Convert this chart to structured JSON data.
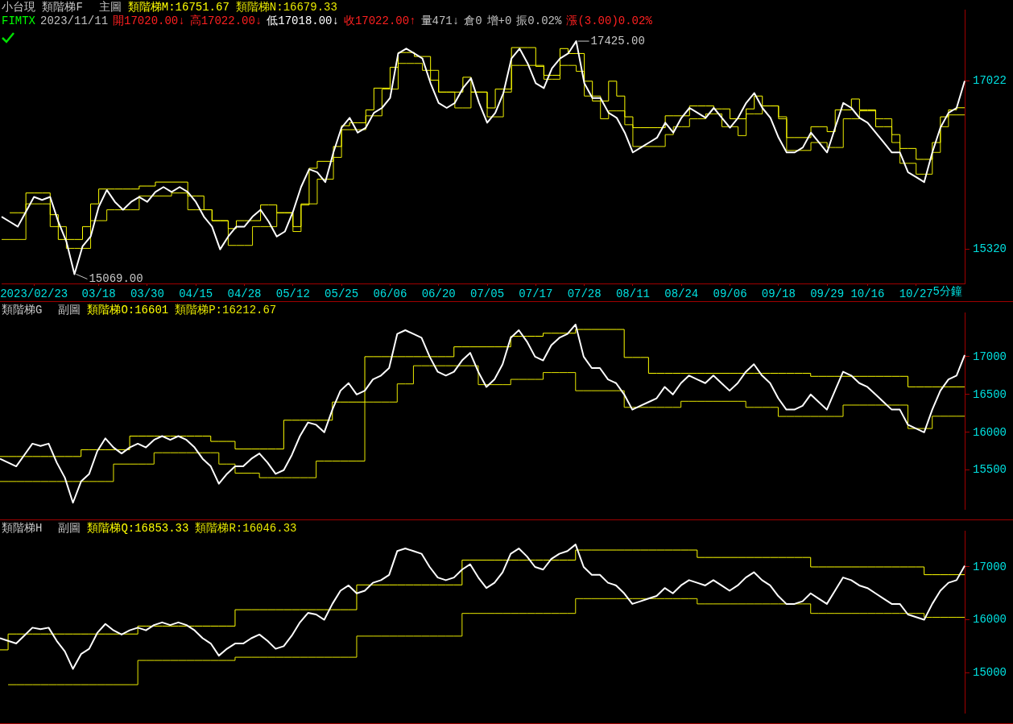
{
  "chart_data": [
    {
      "type": "line",
      "title": "小台現 類階梯F",
      "subtitle": "主圖",
      "legend": "top left",
      "marker": "none",
      "ylim": [
        14975,
        17740
      ],
      "categories": [
        null,
        null,
        null,
        null,
        "2023/02/23",
        null,
        null,
        null,
        null,
        null,
        null,
        null,
        "03/18",
        null,
        null,
        null,
        null,
        null,
        "03/30",
        null,
        null,
        null,
        null,
        null,
        "04/15",
        null,
        null,
        null,
        null,
        null,
        "04/28",
        null,
        null,
        null,
        null,
        null,
        "05/12",
        null,
        null,
        null,
        null,
        null,
        "05/25",
        null,
        null,
        null,
        null,
        null,
        "06/06",
        null,
        null,
        null,
        null,
        null,
        "06/20",
        null,
        null,
        null,
        null,
        null,
        "07/05",
        null,
        null,
        null,
        null,
        null,
        "07/17",
        null,
        null,
        null,
        null,
        null,
        "07/28",
        null,
        null,
        null,
        null,
        null,
        "08/11",
        null,
        null,
        null,
        null,
        null,
        "08/24",
        null,
        null,
        null,
        null,
        null,
        "09/06",
        null,
        null,
        null,
        null,
        null,
        "09/18",
        null,
        null,
        null,
        null,
        null,
        "09/29",
        null,
        null,
        null,
        null,
        "10/16",
        null,
        null,
        null,
        null,
        null,
        "10/27",
        null,
        null,
        null,
        null,
        null,
        null
      ],
      "yticks": [
        15320,
        17022
      ],
      "annotations": [
        "FIMTX",
        "2023/11/11",
        "開17020.00↓",
        "高17022.00↓",
        "低17018.00↓",
        "收17022.00↑",
        "量471↓",
        "倉0",
        "增+0",
        "振0.02%",
        "漲(3.00)0.02%",
        "5分鐘"
      ],
      "series": [
        {
          "color": "#ffffff",
          "values": [
            15650,
            15600,
            15550,
            15700,
            15850,
            15820,
            15850,
            15600,
            15400,
            15069,
            15350,
            15450,
            15750,
            15920,
            15800,
            15720,
            15800,
            15850,
            15800,
            15900,
            15950,
            15900,
            15950,
            15900,
            15800,
            15650,
            15550,
            15320,
            15450,
            15550,
            15550,
            15650,
            15720,
            15600,
            15450,
            15500,
            15700,
            15950,
            16130,
            16100,
            16000,
            16300,
            16550,
            16650,
            16500,
            16550,
            16700,
            16750,
            16850,
            17300,
            17350,
            17300,
            17250,
            17000,
            16800,
            16750,
            16800,
            16950,
            17050,
            16800,
            16600,
            16700,
            16900,
            17250,
            17350,
            17200,
            17000,
            16950,
            17150,
            17250,
            17300,
            17425,
            17000,
            16850,
            16850,
            16700,
            16650,
            16500,
            16300,
            16350,
            16400,
            16450,
            16600,
            16500,
            16650,
            16750,
            16700,
            16650,
            16750,
            16650,
            16550,
            16650,
            16800,
            16900,
            16750,
            16650,
            16450,
            16300,
            16300,
            16350,
            16500,
            16400,
            16300,
            16550,
            16800,
            16750,
            16650,
            16600,
            16500,
            16400,
            16300,
            16300,
            16100,
            16050,
            16000,
            16300,
            16550,
            16700,
            16750,
            17022
          ],
          "value_labels": [
            null,
            null,
            null,
            null,
            null,
            null,
            null,
            null,
            null,
            "15069.00",
            null,
            null,
            null,
            null,
            null,
            null,
            null,
            null,
            null,
            null,
            null,
            null,
            null,
            null,
            null,
            null,
            null,
            null,
            null,
            null,
            null,
            null,
            null,
            null,
            null,
            null,
            null,
            null,
            null,
            null,
            null,
            null,
            null,
            null,
            null,
            null,
            null,
            null,
            null,
            null,
            null,
            null,
            null,
            null,
            null,
            null,
            null,
            null,
            null,
            null,
            null,
            null,
            null,
            null,
            null,
            null,
            null,
            null,
            null,
            null,
            null,
            "17425.00",
            null,
            null,
            null,
            null,
            null,
            null,
            null,
            null,
            null,
            null,
            null,
            null,
            null,
            null,
            null,
            null,
            null,
            null,
            null,
            null,
            null,
            null,
            null,
            null,
            null,
            null,
            null,
            null,
            null,
            null,
            null,
            null,
            null,
            null,
            null,
            null,
            null,
            null,
            null,
            null,
            null,
            null,
            null,
            null,
            null,
            null,
            null,
            null
          ]
        },
        {
          "type": "step",
          "name": "類階梯M:16751.67",
          "color": "#ffff00",
          "values": [
            null,
            15690,
            15690,
            15890,
            15890,
            15890,
            15670,
            15420,
            15420,
            15420,
            15550,
            15780,
            15930,
            15930,
            15930,
            15930,
            15930,
            15960,
            15960,
            16000,
            16000,
            16000,
            16000,
            15860,
            15860,
            15720,
            15610,
            15610,
            15530,
            15610,
            15610,
            15610,
            15770,
            15770,
            15690,
            15690,
            15550,
            15770,
            16140,
            16210,
            16210,
            16360,
            16570,
            16600,
            16600,
            16730,
            16950,
            16950,
            17160,
            17310,
            17310,
            17270,
            17270,
            17030,
            16910,
            16910,
            16910,
            17060,
            16910,
            16910,
            16750,
            16940,
            16940,
            17360,
            17360,
            17360,
            17170,
            17080,
            17080,
            17350,
            17300,
            17300,
            17020,
            16820,
            16820,
            17020,
            16870,
            16660,
            16550,
            16550,
            16550,
            16550,
            16670,
            16670,
            16670,
            16770,
            16770,
            16770,
            16740,
            16740,
            16640,
            16640,
            16740,
            16870,
            16770,
            16770,
            16660,
            16450,
            16450,
            16450,
            16560,
            16560,
            16510,
            16730,
            16730,
            16840,
            16730,
            16730,
            16560,
            16560,
            16480,
            16340,
            16340,
            16230,
            16230,
            16400,
            16660,
            16730,
            16751.67,
            16751.67
          ]
        },
        {
          "type": "step",
          "name": "類階梯N:16679.33",
          "color": "#e8e800",
          "values": [
            15420,
            15420,
            15420,
            15780,
            15780,
            15780,
            15550,
            15550,
            15330,
            15330,
            15330,
            15610,
            15610,
            15720,
            15720,
            15720,
            15720,
            15860,
            15860,
            15860,
            15860,
            15890,
            15890,
            15720,
            15720,
            15720,
            15610,
            15610,
            15360,
            15360,
            15360,
            15550,
            15550,
            15550,
            15690,
            15690,
            15500,
            15780,
            15780,
            16030,
            16030,
            16250,
            16530,
            16530,
            16530,
            16670,
            16670,
            16940,
            16940,
            17200,
            17200,
            17200,
            17130,
            17130,
            16910,
            16910,
            16750,
            16750,
            16910,
            16910,
            16660,
            16660,
            16910,
            17180,
            17180,
            17180,
            17180,
            17040,
            17040,
            17180,
            17180,
            17120,
            16870,
            16870,
            16640,
            16720,
            16720,
            16580,
            16360,
            16360,
            16360,
            16360,
            16480,
            16560,
            16560,
            16640,
            16640,
            16690,
            16690,
            16560,
            16560,
            16470,
            16690,
            16690,
            16770,
            16770,
            16640,
            16320,
            16320,
            16320,
            16400,
            16400,
            16350,
            16350,
            16640,
            16640,
            16720,
            16720,
            16640,
            16640,
            16400,
            16190,
            16190,
            16080,
            16080,
            16300,
            16560,
            16679.33,
            16679.33,
            16679.33
          ]
        }
      ]
    },
    {
      "type": "line",
      "title": "類階梯G",
      "subtitle": "副圖",
      "legend": "top left",
      "marker": "none",
      "tick_labels": "y",
      "ylim": [
        14980,
        17580
      ],
      "yticks": [
        15500,
        16000,
        16500,
        17000
      ],
      "categories": [
        null,
        null,
        null,
        null,
        null,
        null,
        null,
        null,
        null,
        null,
        null,
        null,
        null,
        null,
        null,
        null,
        null,
        null,
        null,
        null,
        null,
        null,
        null,
        null,
        null,
        null,
        null,
        null,
        null,
        null,
        null,
        null,
        null,
        null,
        null,
        null,
        null,
        null,
        null,
        null,
        null,
        null,
        null,
        null,
        null,
        null,
        null,
        null,
        null,
        null,
        null,
        null,
        null,
        null,
        null,
        null,
        null,
        null,
        null,
        null,
        null,
        null,
        null,
        null,
        null,
        null,
        null,
        null,
        null,
        null,
        null,
        null,
        null,
        null,
        null,
        null,
        null,
        null,
        null,
        null,
        null,
        null,
        null,
        null,
        null,
        null,
        null,
        null,
        null,
        null,
        null,
        null,
        null,
        null,
        null,
        null,
        null,
        null,
        null,
        null,
        null,
        null,
        null,
        null,
        null,
        null,
        null,
        null,
        null,
        null,
        null,
        null,
        null,
        null,
        null,
        null,
        null,
        null,
        null,
        null
      ],
      "series": [
        {
          "color": "#ffffff",
          "values": [
            15650,
            15600,
            15550,
            15700,
            15850,
            15820,
            15850,
            15600,
            15400,
            15069,
            15350,
            15450,
            15750,
            15920,
            15800,
            15720,
            15800,
            15850,
            15800,
            15900,
            15950,
            15900,
            15950,
            15900,
            15800,
            15650,
            15550,
            15320,
            15450,
            15550,
            15550,
            15650,
            15720,
            15600,
            15450,
            15500,
            15700,
            15950,
            16130,
            16100,
            16000,
            16300,
            16550,
            16650,
            16500,
            16550,
            16700,
            16750,
            16850,
            17300,
            17350,
            17300,
            17250,
            17000,
            16800,
            16750,
            16800,
            16950,
            17050,
            16800,
            16600,
            16700,
            16900,
            17250,
            17350,
            17200,
            17000,
            16950,
            17150,
            17250,
            17300,
            17425,
            17000,
            16850,
            16850,
            16700,
            16650,
            16500,
            16300,
            16350,
            16400,
            16450,
            16600,
            16500,
            16650,
            16750,
            16700,
            16650,
            16750,
            16650,
            16550,
            16650,
            16800,
            16900,
            16750,
            16650,
            16450,
            16300,
            16300,
            16350,
            16500,
            16400,
            16300,
            16550,
            16800,
            16750,
            16650,
            16600,
            16500,
            16400,
            16300,
            16300,
            16100,
            16050,
            16000,
            16300,
            16550,
            16700,
            16750,
            17022
          ]
        },
        {
          "type": "step",
          "name": "類階梯O:16601",
          "color": "#ffff00",
          "values": [
            15680,
            15680,
            15680,
            15680,
            15680,
            15680,
            15680,
            15680,
            15680,
            15680,
            15770,
            15770,
            15770,
            15770,
            15770,
            15770,
            15950,
            15950,
            15950,
            15950,
            15950,
            15950,
            15950,
            15950,
            15950,
            15950,
            15880,
            15880,
            15880,
            15780,
            15780,
            15780,
            15780,
            15780,
            15780,
            16160,
            16160,
            16160,
            16160,
            16160,
            16160,
            16400,
            16400,
            16400,
            16400,
            17000,
            17000,
            17000,
            17000,
            17000,
            17000,
            17000,
            17000,
            17000,
            17000,
            17000,
            17130,
            17130,
            17130,
            17130,
            17130,
            17130,
            17130,
            17270,
            17270,
            17270,
            17270,
            17310,
            17310,
            17310,
            17310,
            17360,
            17360,
            17360,
            17360,
            17360,
            17360,
            16990,
            16990,
            16990,
            16780,
            16780,
            16780,
            16780,
            16780,
            16780,
            16780,
            16780,
            16780,
            16780,
            16780,
            16780,
            16780,
            16780,
            16780,
            16780,
            16780,
            16780,
            16780,
            16780,
            16740,
            16740,
            16740,
            16740,
            16740,
            16740,
            16740,
            16740,
            16740,
            16740,
            16740,
            16740,
            16601,
            16601,
            16601,
            16601,
            16601,
            16601,
            16601,
            16601
          ]
        },
        {
          "type": "step",
          "name": "類階梯P:16212.67",
          "color": "#e8e800",
          "values": [
            15350,
            15350,
            15350,
            15350,
            15350,
            15350,
            15350,
            15350,
            15350,
            15350,
            15350,
            15350,
            15350,
            15350,
            15580,
            15580,
            15580,
            15580,
            15580,
            15730,
            15730,
            15730,
            15730,
            15730,
            15730,
            15730,
            15730,
            15580,
            15580,
            15460,
            15460,
            15460,
            15400,
            15400,
            15400,
            15400,
            15400,
            15400,
            15400,
            15620,
            15620,
            15620,
            15620,
            15620,
            15620,
            16400,
            16400,
            16400,
            16400,
            16640,
            16640,
            16880,
            16880,
            16880,
            16880,
            16880,
            16880,
            16880,
            16880,
            16630,
            16630,
            16630,
            16630,
            16700,
            16700,
            16700,
            16700,
            16790,
            16790,
            16790,
            16790,
            16550,
            16550,
            16550,
            16550,
            16550,
            16550,
            16330,
            16330,
            16330,
            16330,
            16330,
            16330,
            16330,
            16410,
            16410,
            16410,
            16410,
            16410,
            16410,
            16410,
            16410,
            16330,
            16330,
            16330,
            16330,
            16210,
            16210,
            16210,
            16210,
            16210,
            16210,
            16210,
            16210,
            16360,
            16360,
            16360,
            16360,
            16360,
            16360,
            16360,
            16360,
            16050,
            16050,
            16050,
            16212.67,
            16212.67,
            16212.67,
            16212.67,
            16212.67
          ]
        }
      ]
    },
    {
      "type": "line",
      "title": "類階梯H",
      "subtitle": "副圖",
      "legend": "top left",
      "marker": "none",
      "tick_labels": "y",
      "ylim": [
        14230,
        17680
      ],
      "yticks": [
        15000,
        16000,
        17000
      ],
      "categories": [
        null,
        null,
        null,
        null,
        null,
        null,
        null,
        null,
        null,
        null,
        null,
        null,
        null,
        null,
        null,
        null,
        null,
        null,
        null,
        null,
        null,
        null,
        null,
        null,
        null,
        null,
        null,
        null,
        null,
        null,
        null,
        null,
        null,
        null,
        null,
        null,
        null,
        null,
        null,
        null,
        null,
        null,
        null,
        null,
        null,
        null,
        null,
        null,
        null,
        null,
        null,
        null,
        null,
        null,
        null,
        null,
        null,
        null,
        null,
        null,
        null,
        null,
        null,
        null,
        null,
        null,
        null,
        null,
        null,
        null,
        null,
        null,
        null,
        null,
        null,
        null,
        null,
        null,
        null,
        null,
        null,
        null,
        null,
        null,
        null,
        null,
        null,
        null,
        null,
        null,
        null,
        null,
        null,
        null,
        null,
        null,
        null,
        null,
        null,
        null,
        null,
        null,
        null,
        null,
        null,
        null,
        null,
        null,
        null,
        null,
        null,
        null,
        null,
        null,
        null,
        null,
        null,
        null,
        null,
        null
      ],
      "series": [
        {
          "color": "#ffffff",
          "values": [
            15650,
            15600,
            15550,
            15700,
            15850,
            15820,
            15850,
            15600,
            15400,
            15069,
            15350,
            15450,
            15750,
            15920,
            15800,
            15720,
            15800,
            15850,
            15800,
            15900,
            15950,
            15900,
            15950,
            15900,
            15800,
            15650,
            15550,
            15320,
            15450,
            15550,
            15550,
            15650,
            15720,
            15600,
            15450,
            15500,
            15700,
            15950,
            16130,
            16100,
            16000,
            16300,
            16550,
            16650,
            16500,
            16550,
            16700,
            16750,
            16850,
            17300,
            17350,
            17300,
            17250,
            17000,
            16800,
            16750,
            16800,
            16950,
            17050,
            16800,
            16600,
            16700,
            16900,
            17250,
            17350,
            17200,
            17000,
            16950,
            17150,
            17250,
            17300,
            17425,
            17000,
            16850,
            16850,
            16700,
            16650,
            16500,
            16300,
            16350,
            16400,
            16450,
            16600,
            16500,
            16650,
            16750,
            16700,
            16650,
            16750,
            16650,
            16550,
            16650,
            16800,
            16900,
            16750,
            16650,
            16450,
            16300,
            16300,
            16350,
            16500,
            16400,
            16300,
            16550,
            16800,
            16750,
            16650,
            16600,
            16500,
            16400,
            16300,
            16300,
            16100,
            16050,
            16000,
            16300,
            16550,
            16700,
            16750,
            17022
          ]
        },
        {
          "type": "step",
          "name": "類階梯Q:16853.33",
          "color": "#ffff00",
          "values": [
            15430,
            15730,
            15730,
            15730,
            15730,
            15730,
            15730,
            15730,
            15730,
            15730,
            15730,
            15730,
            15730,
            15730,
            15730,
            15730,
            15730,
            15880,
            15880,
            15880,
            15880,
            15880,
            15880,
            15880,
            15880,
            15880,
            15880,
            15880,
            15880,
            16190,
            16190,
            16190,
            16190,
            16190,
            16190,
            16190,
            16190,
            16190,
            16190,
            16190,
            16190,
            16190,
            16190,
            16190,
            16660,
            16660,
            16660,
            16660,
            16660,
            16660,
            16660,
            16660,
            16660,
            16660,
            16660,
            16660,
            16660,
            17130,
            17130,
            17130,
            17130,
            17130,
            17130,
            17130,
            17130,
            17130,
            17130,
            17130,
            17130,
            17130,
            17130,
            17320,
            17320,
            17320,
            17320,
            17320,
            17320,
            17320,
            17320,
            17320,
            17320,
            17320,
            17320,
            17320,
            17320,
            17320,
            17180,
            17180,
            17180,
            17180,
            17180,
            17180,
            17180,
            17180,
            17180,
            17180,
            17180,
            17180,
            17180,
            17180,
            17000,
            17000,
            17000,
            17000,
            17000,
            17000,
            17000,
            17000,
            17000,
            17000,
            17000,
            17000,
            17000,
            17000,
            16853.33,
            16853.33,
            16853.33,
            16853.33,
            16853.33,
            16853.33
          ]
        },
        {
          "type": "step",
          "name": "類階梯R:16046.33",
          "color": "#e8e800",
          "values": [
            null,
            14770,
            14770,
            14770,
            14770,
            14770,
            14770,
            14770,
            14770,
            14770,
            14770,
            14770,
            14770,
            14770,
            14770,
            14770,
            14770,
            15230,
            15230,
            15230,
            15230,
            15230,
            15230,
            15230,
            15230,
            15230,
            15230,
            15230,
            15230,
            15290,
            15290,
            15290,
            15290,
            15290,
            15290,
            15290,
            15290,
            15290,
            15290,
            15290,
            15290,
            15290,
            15290,
            15290,
            15690,
            15690,
            15690,
            15690,
            15690,
            15690,
            15690,
            15690,
            15690,
            15690,
            15690,
            15690,
            15690,
            16120,
            16120,
            16120,
            16120,
            16120,
            16120,
            16120,
            16120,
            16120,
            16120,
            16120,
            16120,
            16120,
            16120,
            16400,
            16400,
            16400,
            16400,
            16400,
            16400,
            16400,
            16400,
            16400,
            16400,
            16400,
            16400,
            16400,
            16400,
            16400,
            16300,
            16300,
            16300,
            16300,
            16300,
            16300,
            16300,
            16300,
            16300,
            16300,
            16300,
            16300,
            16300,
            16300,
            16120,
            16120,
            16120,
            16120,
            16120,
            16120,
            16120,
            16120,
            16120,
            16120,
            16120,
            16120,
            16120,
            16120,
            16046.33,
            16046.33,
            16046.33,
            16046.33,
            16046.33,
            16046.33
          ]
        }
      ]
    }
  ]
}
